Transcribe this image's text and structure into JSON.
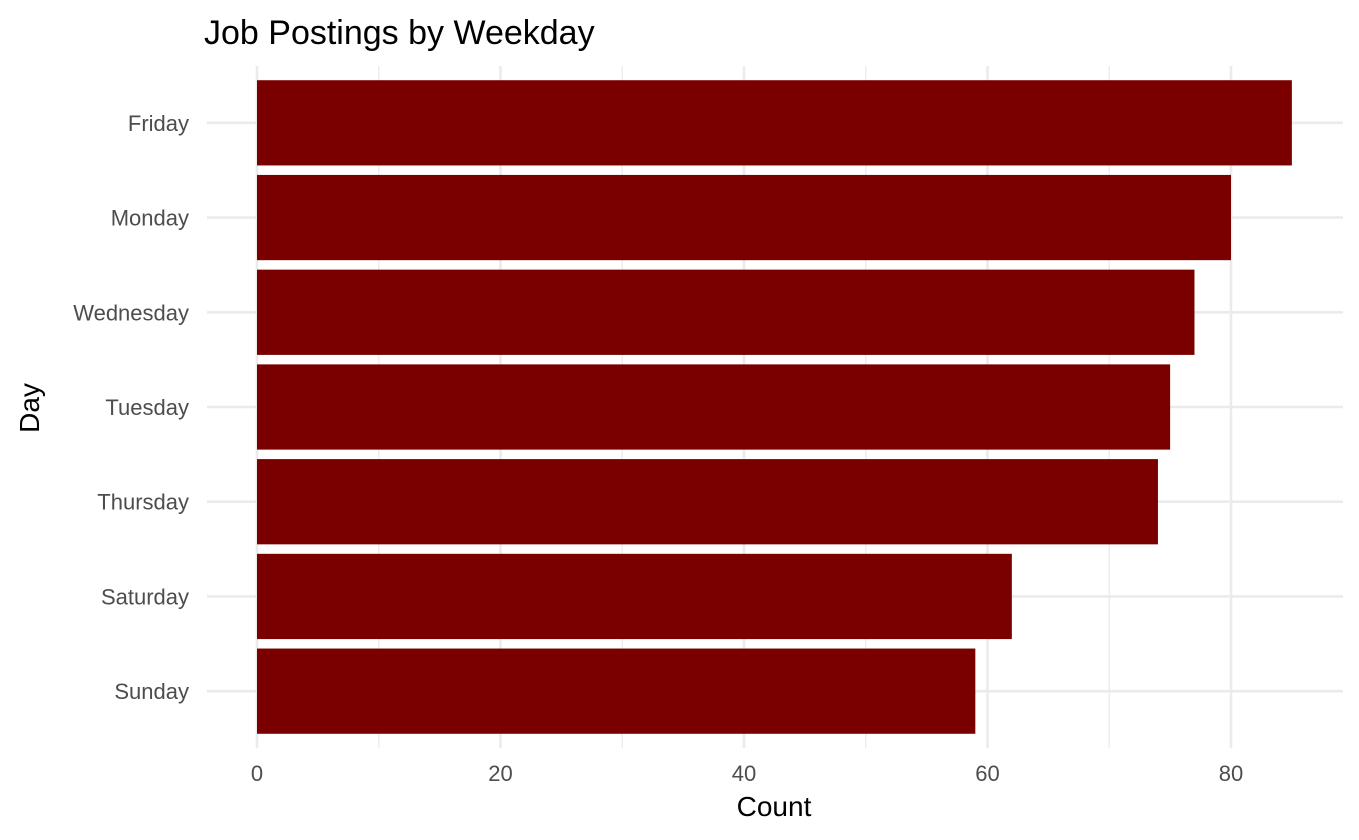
{
  "chart_data": {
    "type": "bar",
    "orientation": "horizontal",
    "title": "Job Postings by Weekday",
    "xlabel": "Count",
    "ylabel": "Day",
    "categories": [
      "Friday",
      "Monday",
      "Wednesday",
      "Tuesday",
      "Thursday",
      "Saturday",
      "Sunday"
    ],
    "values": [
      85,
      80,
      77,
      75,
      74,
      62,
      59
    ],
    "xlim": [
      0,
      89
    ],
    "xticks": [
      0,
      20,
      40,
      60,
      80
    ],
    "grid": true,
    "bar_color": "#7a0000",
    "background": "#ffffff"
  }
}
